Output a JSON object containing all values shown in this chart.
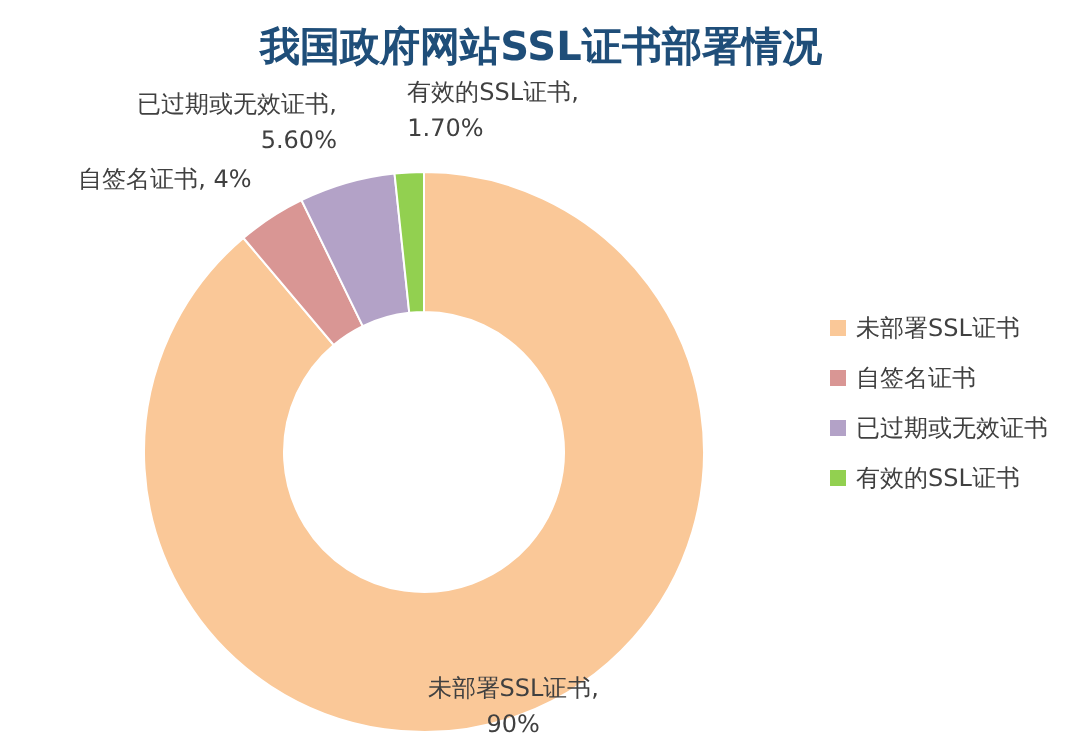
{
  "chart_data": {
    "type": "donut",
    "title": "我国政府网站SSL证书部署情况",
    "categories": [
      "未部署SSL证书",
      "自签名证书",
      "已过期或无效证书",
      "有效的SSL证书"
    ],
    "values": [
      90,
      4,
      5.6,
      1.7
    ],
    "value_labels": [
      "未部署SSL证书,\n90%",
      "自签名证书, 4%",
      "已过期或无效证书,\n5.60%",
      "有效的SSL证书,\n1.70%"
    ],
    "colors": [
      "#fac898",
      "#d99694",
      "#b3a2c7",
      "#92d050"
    ],
    "legend": "right"
  }
}
